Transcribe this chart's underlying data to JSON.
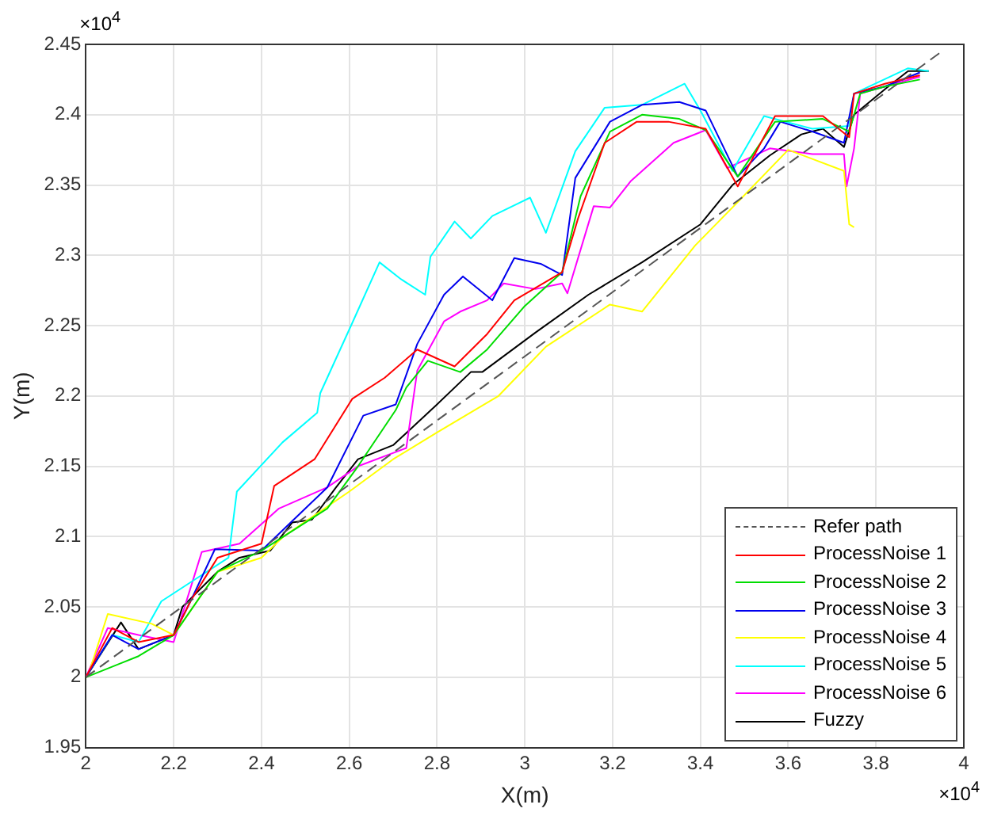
{
  "chart_data": {
    "type": "line",
    "xlabel": "X(m)",
    "ylabel": "Y(m)",
    "xlim": [
      2,
      4
    ],
    "xticks": [
      2,
      2.2,
      2.4,
      2.6,
      2.8,
      3,
      3.2,
      3.4,
      3.6,
      3.8,
      4
    ],
    "ylim": [
      1.95,
      2.45
    ],
    "yticks": [
      1.95,
      2,
      2.05,
      2.1,
      2.15,
      2.2,
      2.25,
      2.3,
      2.35,
      2.4,
      2.45
    ],
    "grid": true,
    "legend": "bottom right",
    "marker": "none",
    "annotations": [
      "×10$^{4}$",
      "×10$^{4}$"
    ],
    "series": [
      {
        "name": "Refer path",
        "color": "#555555",
        "line_style": "dashed",
        "x": [
          2,
          3.95
        ],
        "values": [
          2,
          2.445
        ]
      },
      {
        "name": "ProcessNoise 1",
        "color": "#ff0000",
        "line_style": "solid",
        "x": [
          2,
          2.06,
          2.12,
          2.2,
          2.24,
          2.3,
          2.4,
          2.429,
          2.521,
          2.607,
          2.681,
          2.755,
          2.84,
          2.914,
          2.976,
          3.085,
          3.121,
          3.182,
          3.255,
          3.327,
          3.412,
          3.485,
          3.57,
          3.679,
          3.739,
          3.75,
          3.82,
          3.9
        ],
        "values": [
          2,
          2.035,
          2.025,
          2.03,
          2.055,
          2.085,
          2.095,
          2.136,
          2.155,
          2.198,
          2.213,
          2.233,
          2.221,
          2.244,
          2.268,
          2.288,
          2.326,
          2.38,
          2.395,
          2.395,
          2.39,
          2.349,
          2.399,
          2.399,
          2.384,
          2.415,
          2.422,
          2.428
        ]
      },
      {
        "name": "ProcessNoise 2",
        "color": "#00dd00",
        "line_style": "solid",
        "x": [
          2,
          2.08,
          2.12,
          2.2,
          2.3,
          2.4,
          2.55,
          2.62,
          2.706,
          2.73,
          2.779,
          2.853,
          2.914,
          3,
          3.085,
          3.127,
          3.194,
          3.267,
          3.352,
          3.412,
          3.485,
          3.57,
          3.679,
          3.739,
          3.764,
          3.82,
          3.9
        ],
        "values": [
          2,
          2.01,
          2.015,
          2.03,
          2.075,
          2.09,
          2.12,
          2.15,
          2.19,
          2.206,
          2.225,
          2.217,
          2.233,
          2.264,
          2.288,
          2.342,
          2.388,
          2.4,
          2.397,
          2.389,
          2.356,
          2.395,
          2.397,
          2.388,
          2.415,
          2.42,
          2.425
        ]
      },
      {
        "name": "ProcessNoise 3",
        "color": "#0000ee",
        "line_style": "solid",
        "x": [
          2,
          2.06,
          2.12,
          2.2,
          2.24,
          2.294,
          2.4,
          2.55,
          2.632,
          2.706,
          2.755,
          2.816,
          2.859,
          2.926,
          2.976,
          3.036,
          3.085,
          3.115,
          3.194,
          3.267,
          3.352,
          3.412,
          3.485,
          3.545,
          3.582,
          3.655,
          3.727,
          3.75,
          3.82,
          3.9
        ],
        "values": [
          2,
          2.03,
          2.02,
          2.03,
          2.055,
          2.091,
          2.09,
          2.135,
          2.186,
          2.194,
          2.237,
          2.272,
          2.285,
          2.268,
          2.298,
          2.294,
          2.286,
          2.355,
          2.395,
          2.407,
          2.409,
          2.403,
          2.356,
          2.376,
          2.395,
          2.388,
          2.38,
          2.415,
          2.42,
          2.43
        ]
      },
      {
        "name": "ProcessNoise 4",
        "color": "#ffff00",
        "line_style": "solid",
        "x": [
          2.01,
          2.05,
          2.15,
          2.2,
          2.3,
          2.4,
          2.45,
          2.6,
          2.7,
          2.8,
          2.94,
          3.048,
          3.194,
          3.267,
          3.388,
          3.473,
          3.6,
          3.727,
          3.739,
          3.75
        ],
        "values": [
          2.006,
          2.045,
          2.038,
          2.03,
          2.075,
          2.085,
          2.1,
          2.132,
          2.155,
          2.174,
          2.2,
          2.235,
          2.265,
          2.26,
          2.307,
          2.334,
          2.375,
          2.36,
          2.322,
          2.32
        ]
      },
      {
        "name": "ProcessNoise 5",
        "color": "#00ffff",
        "line_style": "solid",
        "x": [
          2,
          2.06,
          2.12,
          2.172,
          2.325,
          2.344,
          2.448,
          2.527,
          2.534,
          2.607,
          2.669,
          2.718,
          2.773,
          2.785,
          2.84,
          2.877,
          2.926,
          3.012,
          3.048,
          3.115,
          3.182,
          3.267,
          3.364,
          3.4,
          3.473,
          3.545,
          3.655,
          3.739,
          3.75,
          3.873,
          3.92
        ],
        "values": [
          2,
          2.03,
          2.025,
          2.054,
          2.085,
          2.132,
          2.167,
          2.188,
          2.202,
          2.252,
          2.295,
          2.283,
          2.272,
          2.299,
          2.324,
          2.312,
          2.328,
          2.341,
          2.316,
          2.374,
          2.405,
          2.407,
          2.422,
          2.403,
          2.36,
          2.399,
          2.39,
          2.392,
          2.415,
          2.433,
          2.431
        ]
      },
      {
        "name": "ProcessNoise 6",
        "color": "#ff00ff",
        "line_style": "solid",
        "x": [
          2,
          2.05,
          2.12,
          2.2,
          2.264,
          2.35,
          2.44,
          2.55,
          2.62,
          2.73,
          2.755,
          2.816,
          2.853,
          2.914,
          2.952,
          3.024,
          3.085,
          3.097,
          3.157,
          3.194,
          3.242,
          3.339,
          3.412,
          3.461,
          3.558,
          3.655,
          3.727,
          3.733,
          3.75,
          3.764,
          3.82,
          3.9
        ],
        "values": [
          2,
          2.035,
          2.03,
          2.025,
          2.089,
          2.095,
          2.12,
          2.135,
          2.15,
          2.163,
          2.218,
          2.253,
          2.26,
          2.268,
          2.28,
          2.276,
          2.28,
          2.273,
          2.335,
          2.334,
          2.353,
          2.38,
          2.389,
          2.362,
          2.376,
          2.372,
          2.372,
          2.349,
          2.376,
          2.415,
          2.42,
          2.427
        ]
      },
      {
        "name": "Fuzzy",
        "color": "#000000",
        "line_style": "solid",
        "x": [
          2,
          2.08,
          2.12,
          2.2,
          2.22,
          2.3,
          2.35,
          2.42,
          2.47,
          2.515,
          2.57,
          2.62,
          2.7,
          2.8,
          2.877,
          2.903,
          3.024,
          3.145,
          3.267,
          3.4,
          3.473,
          3.558,
          3.63,
          3.679,
          3.727,
          3.75,
          3.824,
          3.873,
          3.92
        ],
        "values": [
          2,
          2.039,
          2.02,
          2.03,
          2.05,
          2.075,
          2.085,
          2.09,
          2.11,
          2.112,
          2.135,
          2.155,
          2.165,
          2.194,
          2.217,
          2.217,
          2.245,
          2.272,
          2.295,
          2.322,
          2.35,
          2.371,
          2.386,
          2.39,
          2.377,
          2.4,
          2.419,
          2.431,
          2.431
        ]
      }
    ]
  }
}
